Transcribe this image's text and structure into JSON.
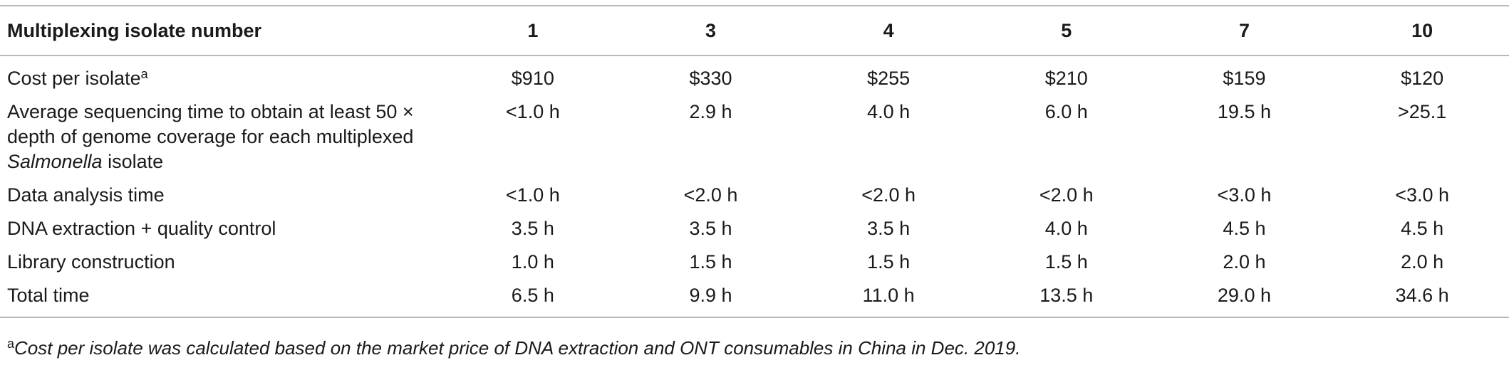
{
  "table": {
    "header": {
      "label": "Multiplexing isolate number",
      "values": [
        1,
        3,
        4,
        5,
        7,
        10
      ]
    },
    "rows": [
      {
        "label": {
          "text": "Cost per isolate",
          "sup": "a"
        },
        "values": [
          "$910",
          "$330",
          "$255",
          "$210",
          "$159",
          "$120"
        ]
      },
      {
        "label": {
          "parts": [
            "Average sequencing time to obtain at least 50 × depth of genome coverage for each multiplexed ",
            "Salmonella",
            " isolate"
          ]
        },
        "values": [
          "<1.0 h",
          "2.9 h",
          "4.0 h",
          "6.0 h",
          "19.5 h",
          ">25.1"
        ]
      },
      {
        "label": {
          "text": "Data analysis time"
        },
        "values": [
          "<1.0 h",
          "<2.0 h",
          "<2.0 h",
          "<2.0 h",
          "<3.0 h",
          "<3.0 h"
        ]
      },
      {
        "label": {
          "text": "DNA extraction + quality control"
        },
        "values": [
          "3.5 h",
          "3.5 h",
          "3.5 h",
          "4.0 h",
          "4.5 h",
          "4.5 h"
        ]
      },
      {
        "label": {
          "text": "Library construction"
        },
        "values": [
          "1.0 h",
          "1.5 h",
          "1.5 h",
          "1.5 h",
          "2.0 h",
          "2.0 h"
        ]
      },
      {
        "label": {
          "text": "Total time"
        },
        "values": [
          "6.5 h",
          "9.9 h",
          "11.0 h",
          "13.5 h",
          "29.0 h",
          "34.6 h"
        ]
      }
    ]
  },
  "footnote": {
    "marker": "a",
    "text": "Cost per isolate was calculated based on the market price of DNA extraction and ONT consumables in China in Dec. 2019."
  }
}
